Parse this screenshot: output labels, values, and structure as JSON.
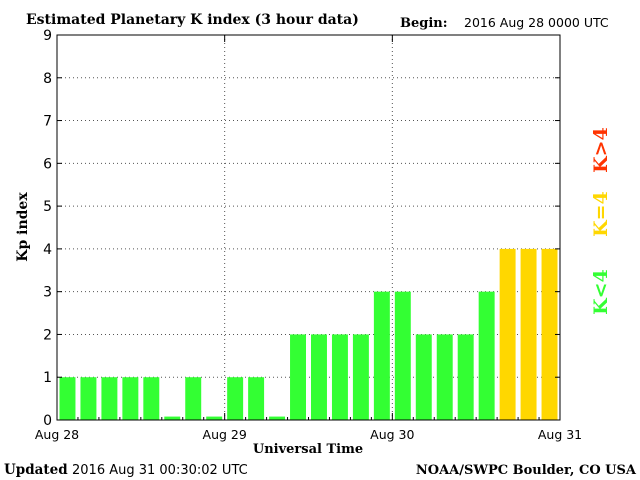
{
  "header": {
    "title": "Estimated Planetary K index (3 hour data)",
    "begin_label": "Begin:",
    "begin_value": "2016 Aug 28 0000 UTC"
  },
  "footer": {
    "updated_label": "Updated",
    "updated_value": "2016 Aug 31 00:30:02 UTC",
    "source": "NOAA/SWPC Boulder, CO USA"
  },
  "legend": {
    "below": "K<4",
    "equal": "K=4",
    "above": "K>4"
  },
  "colors": {
    "below": "#33ff33",
    "equal": "#ffd700",
    "above": "#ff3300",
    "axis": "#000000",
    "grid": "#555555",
    "background": "#ffffff"
  },
  "chart_data": {
    "type": "bar",
    "title": "Estimated Planetary K index (3 hour data)",
    "xlabel": "Universal Time",
    "ylabel": "Kp index",
    "ylim": [
      0,
      9
    ],
    "yticks": [
      0,
      1,
      2,
      3,
      4,
      5,
      6,
      7,
      8,
      9
    ],
    "x_tick_labels": [
      "Aug 28",
      "Aug 29",
      "Aug 30",
      "Aug 31"
    ],
    "grid": true,
    "interval_hours": 3,
    "values": [
      1,
      1,
      1,
      1,
      1,
      0,
      1,
      0,
      1,
      1,
      0,
      2,
      2,
      2,
      2,
      3,
      3,
      2,
      2,
      2,
      3,
      4,
      4,
      4
    ]
  }
}
